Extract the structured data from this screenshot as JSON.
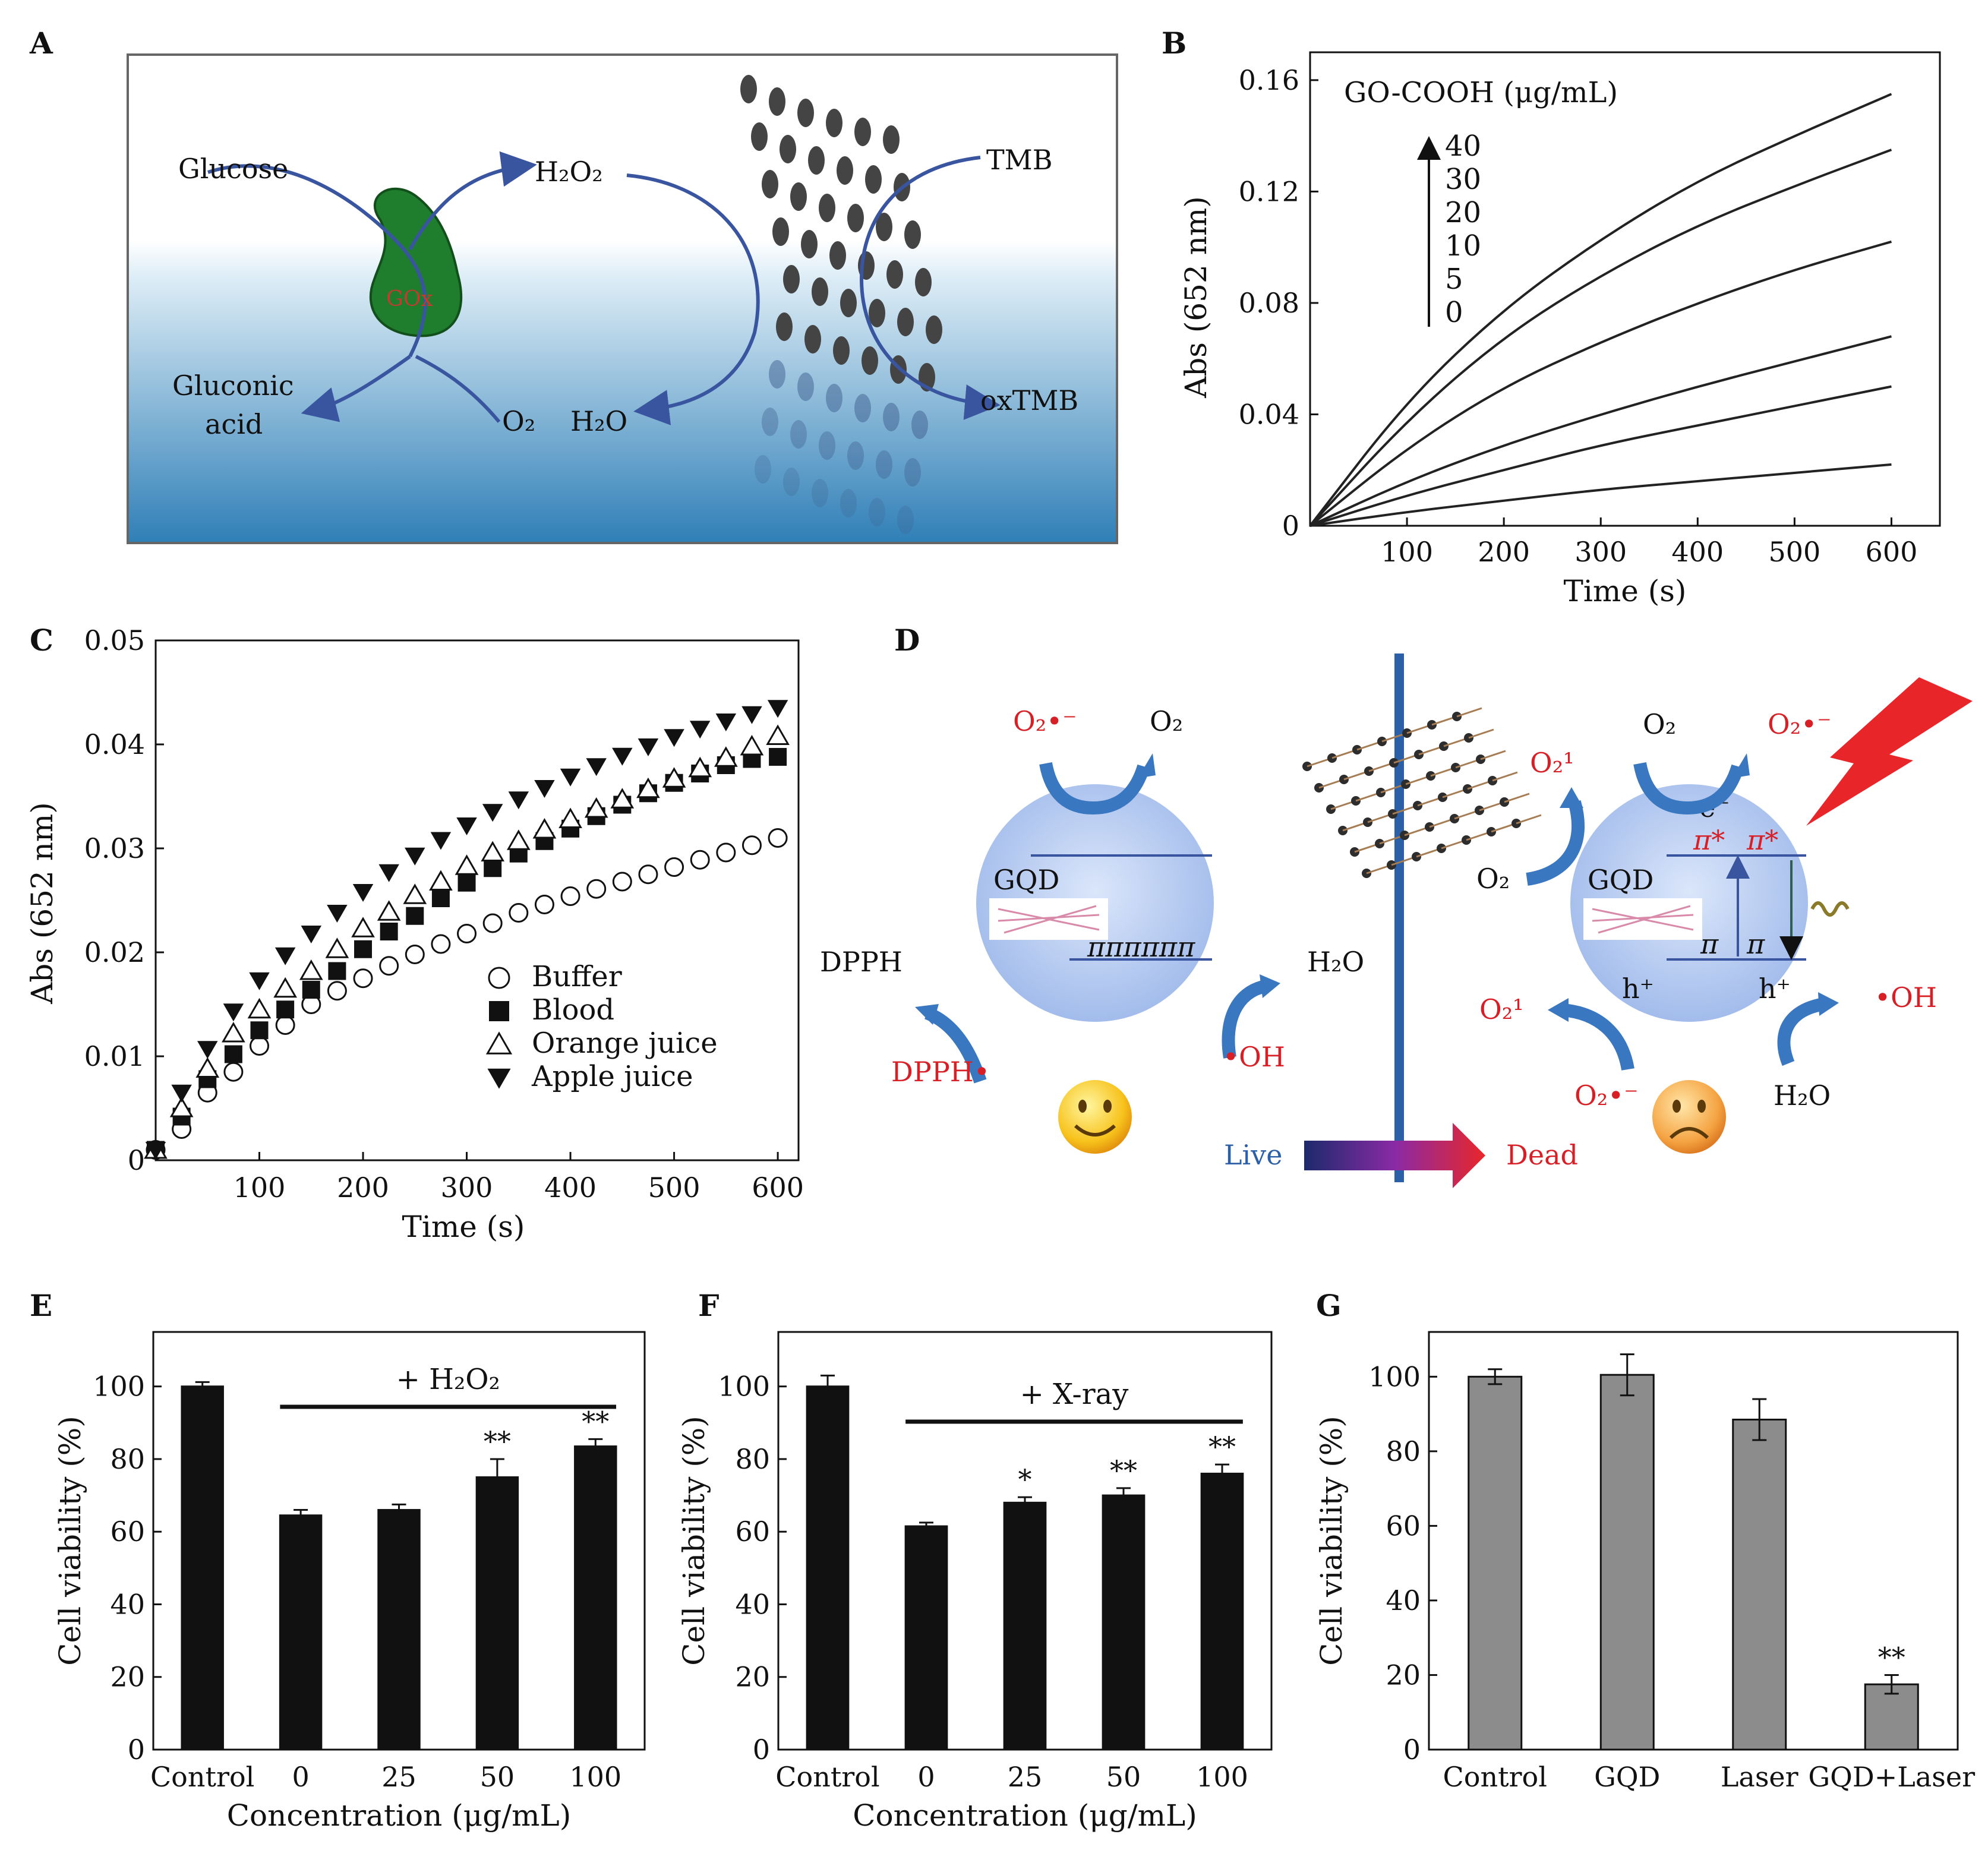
{
  "panels": {
    "A": {
      "letter": "A",
      "labels": {
        "glucose": "Glucose",
        "h2o2": "H₂O₂",
        "tmb": "TMB",
        "gox": "GOx",
        "gluconic1": "Gluconic",
        "gluconic2": "acid",
        "o2": "O₂",
        "h2o": "H₂O",
        "oxtmb": "oxTMB"
      }
    },
    "B": {
      "letter": "B"
    },
    "C": {
      "letter": "C"
    },
    "D": {
      "letter": "D",
      "labels": {
        "o2rad_l": "O₂•⁻",
        "o2_l": "O₂",
        "gqd_l": "GQD",
        "pi_l": "ππππππ",
        "dpph": "DPPH",
        "h2o_l": "H₂O",
        "dpph_rad": "DPPH•",
        "oh_rad_l": "•OH",
        "o2_r": "O₂",
        "o2rad_r": "O₂•⁻",
        "o21_top": "O₂¹",
        "e_minus": "e⁻",
        "o2_mid": "O₂",
        "gqd_r": "GQD",
        "pistar1": "π*",
        "pistar2": "π*",
        "pi1": "π",
        "pi2": "π",
        "hplus1": "h⁺",
        "hplus2": "h⁺",
        "oh_rad_r": "•OH",
        "o21_bot": "O₂¹",
        "o2rad_bot": "O₂•⁻",
        "h2o_r": "H₂O",
        "live": "Live",
        "dead": "Dead"
      }
    },
    "E": {
      "letter": "E"
    },
    "F": {
      "letter": "F"
    },
    "G": {
      "letter": "G"
    }
  },
  "colors": {
    "curve": "#222222",
    "bar_black": "#111111",
    "bar_gray": "#8c8c8c",
    "arrow_blue": "#3d6db4",
    "radical_red": "#d81f26",
    "circle_blue": "#a9c1ec",
    "graphene_dark": "#333333"
  },
  "chart_data": [
    {
      "id": "B",
      "type": "line",
      "xlabel": "Time (s)",
      "ylabel": "Abs (652 nm)",
      "xlim": [
        0,
        650
      ],
      "ylim": [
        0,
        0.17
      ],
      "xticks": [
        "100",
        "200",
        "300",
        "400",
        "500",
        "600"
      ],
      "yticks": [
        "0",
        "0.04",
        "0.08",
        "0.12",
        "0.16"
      ],
      "legend_title": "GO-COOH (μg/mL)",
      "legend_values": [
        "40",
        "30",
        "20",
        "10",
        "5",
        "0"
      ],
      "series": [
        {
          "name": "0",
          "x": [
            0,
            100,
            200,
            300,
            400,
            500,
            600
          ],
          "y": [
            0,
            0.005,
            0.009,
            0.013,
            0.016,
            0.019,
            0.022
          ]
        },
        {
          "name": "5",
          "x": [
            0,
            100,
            200,
            300,
            400,
            500,
            600
          ],
          "y": [
            0,
            0.011,
            0.02,
            0.029,
            0.036,
            0.043,
            0.05
          ]
        },
        {
          "name": "10",
          "x": [
            0,
            100,
            200,
            300,
            400,
            500,
            600
          ],
          "y": [
            0,
            0.016,
            0.029,
            0.04,
            0.05,
            0.059,
            0.068
          ]
        },
        {
          "name": "20",
          "x": [
            0,
            100,
            200,
            300,
            400,
            500,
            600
          ],
          "y": [
            0,
            0.028,
            0.05,
            0.066,
            0.08,
            0.092,
            0.102
          ]
        },
        {
          "name": "30",
          "x": [
            0,
            100,
            200,
            300,
            400,
            500,
            600
          ],
          "y": [
            0,
            0.038,
            0.068,
            0.09,
            0.108,
            0.122,
            0.135
          ]
        },
        {
          "name": "40",
          "x": [
            0,
            100,
            200,
            300,
            400,
            500,
            600
          ],
          "y": [
            0,
            0.045,
            0.078,
            0.103,
            0.124,
            0.14,
            0.155
          ]
        }
      ]
    },
    {
      "id": "C",
      "type": "scatter",
      "xlabel": "Time (s)",
      "ylabel": "Abs (652 nm)",
      "xlim": [
        0,
        620
      ],
      "ylim": [
        0,
        0.05
      ],
      "xticks": [
        "100",
        "200",
        "300",
        "400",
        "500",
        "600"
      ],
      "yticks": [
        "0",
        "0.01",
        "0.02",
        "0.03",
        "0.04",
        "0.05"
      ],
      "x": [
        0,
        25,
        50,
        75,
        100,
        125,
        150,
        175,
        200,
        225,
        250,
        275,
        300,
        325,
        350,
        375,
        400,
        425,
        450,
        475,
        500,
        525,
        550,
        575,
        600
      ],
      "series": [
        {
          "name": "Buffer",
          "marker": "circle-open",
          "y": [
            0.001,
            0.003,
            0.0065,
            0.0085,
            0.011,
            0.013,
            0.015,
            0.0163,
            0.0175,
            0.0187,
            0.0198,
            0.0208,
            0.0218,
            0.0228,
            0.0238,
            0.0246,
            0.0254,
            0.0261,
            0.0268,
            0.0275,
            0.0282,
            0.0289,
            0.0296,
            0.0303,
            0.031
          ]
        },
        {
          "name": "Blood",
          "marker": "square-filled",
          "y": [
            0.001,
            0.0042,
            0.0078,
            0.0102,
            0.0125,
            0.0145,
            0.0164,
            0.0182,
            0.0203,
            0.022,
            0.0235,
            0.0252,
            0.0267,
            0.0281,
            0.0295,
            0.0307,
            0.0319,
            0.0331,
            0.0342,
            0.0353,
            0.0363,
            0.0372,
            0.038,
            0.0386,
            0.0388
          ]
        },
        {
          "name": "Orange juice",
          "marker": "triangle-open",
          "y": [
            0.001,
            0.005,
            0.0088,
            0.0122,
            0.0145,
            0.0165,
            0.0182,
            0.0203,
            0.0223,
            0.0239,
            0.0255,
            0.0268,
            0.0283,
            0.0296,
            0.0307,
            0.0318,
            0.0328,
            0.0338,
            0.0347,
            0.0357,
            0.0367,
            0.0377,
            0.0387,
            0.0398,
            0.0408
          ]
        },
        {
          "name": "Apple juice",
          "marker": "triangle-down-filled",
          "y": [
            0.001,
            0.0065,
            0.0107,
            0.0143,
            0.0173,
            0.0197,
            0.0218,
            0.0238,
            0.0258,
            0.0277,
            0.0293,
            0.0308,
            0.0322,
            0.0335,
            0.0347,
            0.0358,
            0.0369,
            0.0379,
            0.0389,
            0.0398,
            0.0407,
            0.0415,
            0.0422,
            0.0429,
            0.0435
          ]
        }
      ]
    },
    {
      "id": "E",
      "type": "bar",
      "xlabel": "Concentration (μg/mL)",
      "ylabel": "Cell viability (%)",
      "ylim": [
        0,
        115
      ],
      "yticks": [
        "0",
        "20",
        "40",
        "60",
        "80",
        "100"
      ],
      "categories": [
        "Control",
        "0",
        "25",
        "50",
        "100"
      ],
      "values": [
        100,
        64.5,
        66,
        75,
        83.5
      ],
      "errors": [
        1.2,
        1.5,
        1.5,
        5,
        2
      ],
      "significance": [
        "",
        "",
        "",
        "**",
        "**"
      ],
      "bracket_label": "+ H₂O₂",
      "bar_color": "#111111"
    },
    {
      "id": "F",
      "type": "bar",
      "xlabel": "Concentration (μg/mL)",
      "ylabel": "Cell viability (%)",
      "ylim": [
        0,
        115
      ],
      "yticks": [
        "0",
        "20",
        "40",
        "60",
        "80",
        "100"
      ],
      "categories": [
        "Control",
        "0",
        "25",
        "50",
        "100"
      ],
      "values": [
        100,
        61.5,
        68,
        70,
        76
      ],
      "errors": [
        3,
        1,
        1.5,
        2,
        2.5
      ],
      "significance": [
        "",
        "",
        "*",
        "**",
        "**"
      ],
      "bracket_label": "+ X-ray",
      "bar_color": "#111111"
    },
    {
      "id": "G",
      "type": "bar",
      "xlabel": "",
      "ylabel": "Cell viability (%)",
      "ylim": [
        0,
        112
      ],
      "yticks": [
        "0",
        "20",
        "40",
        "60",
        "80",
        "100"
      ],
      "categories": [
        "Control",
        "GQD",
        "Laser",
        "GQD+Laser"
      ],
      "values": [
        100,
        100.5,
        88.5,
        17.5
      ],
      "errors": [
        2,
        5.5,
        5.5,
        2.5
      ],
      "significance": [
        "",
        "",
        "",
        "**"
      ],
      "bar_color": "#8c8c8c"
    }
  ]
}
